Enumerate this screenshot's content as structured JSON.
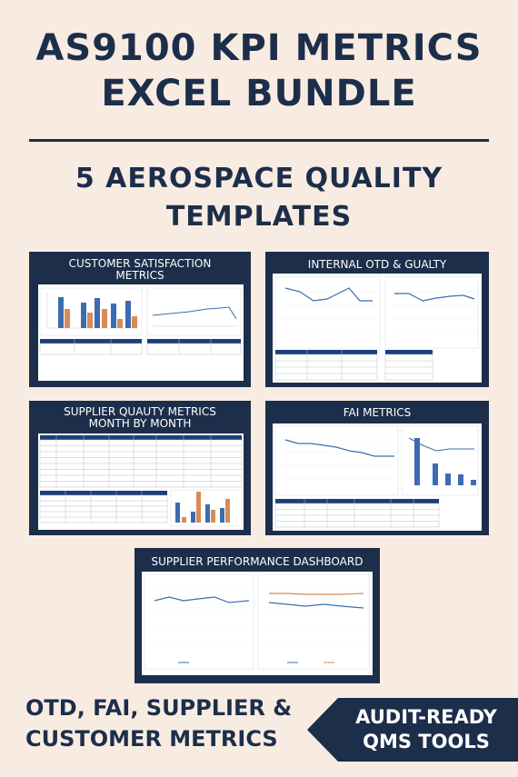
{
  "header": {
    "title_line1": "AS9100 KPI METRICS",
    "title_line2": "EXCEL BUNDLE",
    "subtitle_line1": "5 AEROSPACE QUALITY",
    "subtitle_line2": "TEMPLATES"
  },
  "panels": {
    "customer": {
      "title_line1": "CUSTOMER SATISFACTION",
      "title_line2": "METRICS"
    },
    "internal": {
      "title": "INTERNAL OTD & GUALTY"
    },
    "supplier_quality": {
      "title_line1": "SUPPLIER QUAUTY METRICS",
      "title_line2": "MONTH BY MONTH"
    },
    "fai": {
      "title": "FAI METRICS"
    },
    "supplier_performance": {
      "title": "SUPPLIER PERFORMANCE DASHBOARD"
    }
  },
  "footer": {
    "left_line1": "OTD, FAI, SUPPLIER &",
    "left_line2": "CUSTOMER METRICS",
    "badge_line1": "AUDIT-READY",
    "badge_line2": "QMS TOOLS"
  },
  "colors": {
    "navy": "#1c2e4a",
    "background": "#f8ece2",
    "bar_blue": "#3d6bb0",
    "bar_orange": "#d88a57"
  }
}
